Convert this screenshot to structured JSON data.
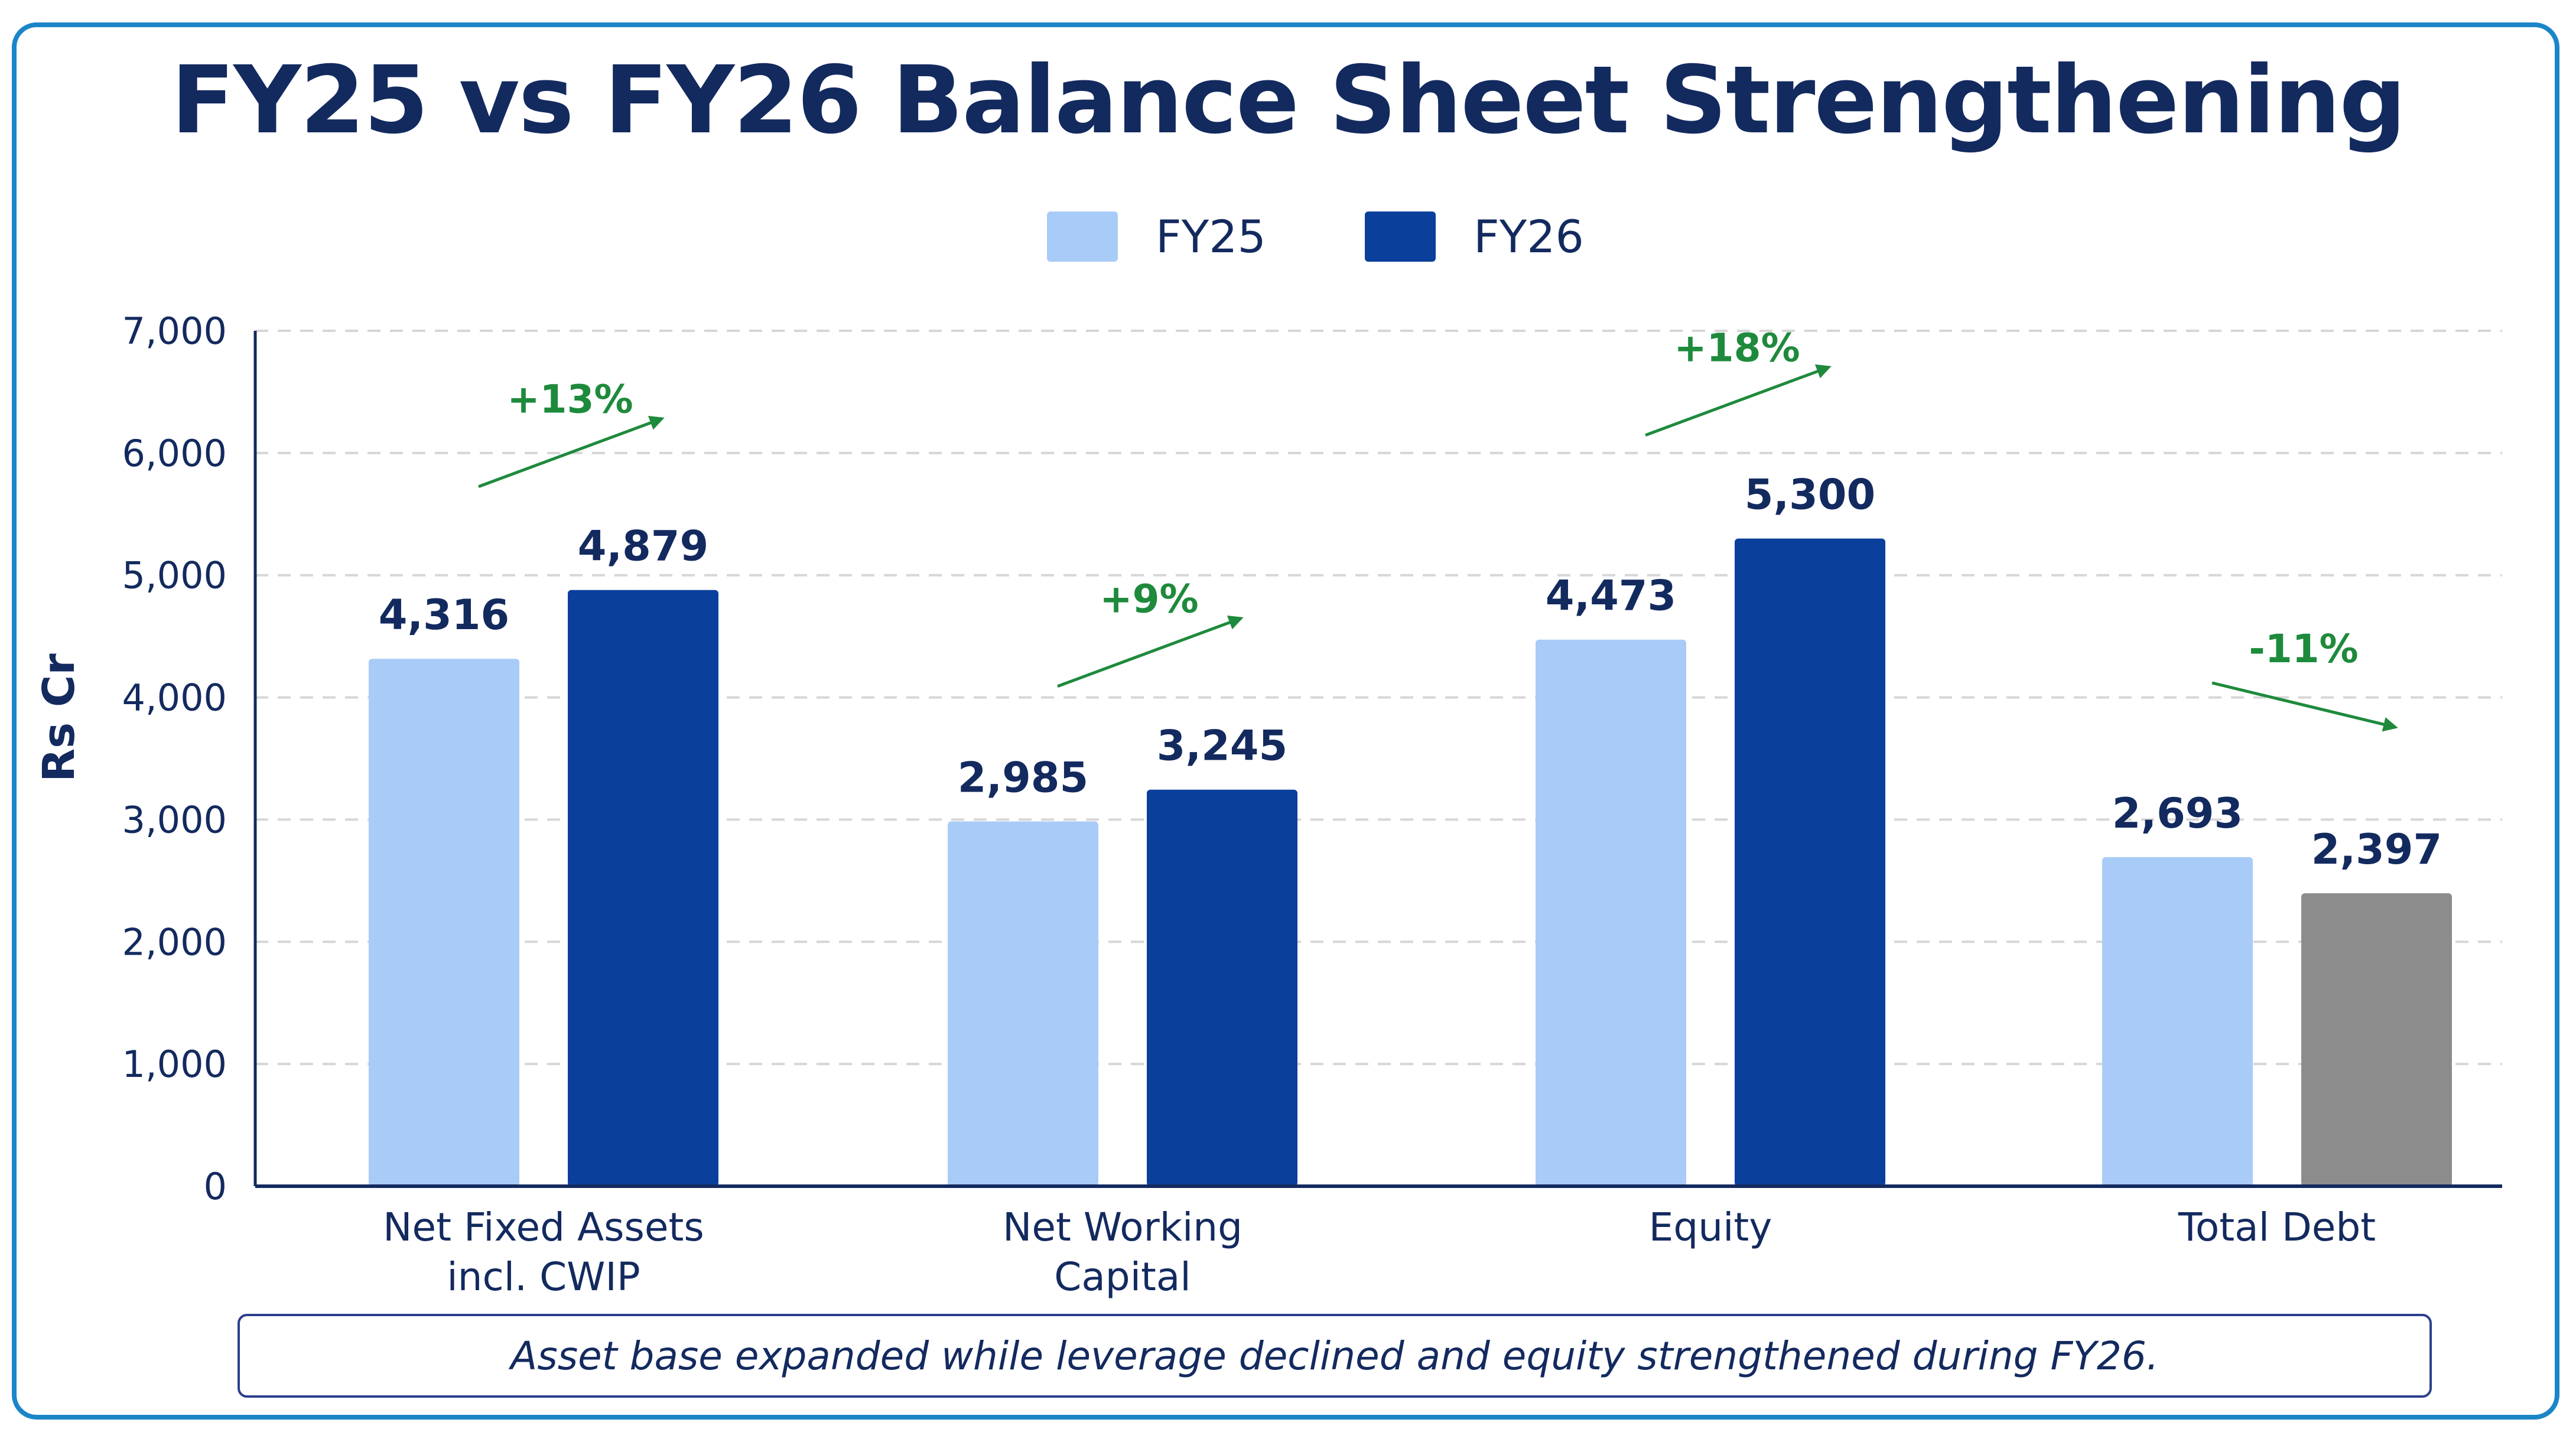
{
  "title": "FY25 vs FY26 Balance Sheet Strengthening",
  "legend": [
    {
      "label": "FY25",
      "color": "#a9cbf7"
    },
    {
      "label": "FY26",
      "color": "#0b3f9c"
    }
  ],
  "note": "Asset base expanded while leverage declined and equity strengthened during FY26.",
  "chart_data": {
    "type": "bar",
    "title": "FY25 vs FY26 Balance Sheet Strengthening",
    "ylabel": "Rs Cr",
    "xlabel": "",
    "ylim": [
      0,
      7000
    ],
    "yticks": [
      0,
      1000,
      2000,
      3000,
      4000,
      5000,
      6000,
      7000
    ],
    "ytick_labels": [
      "0",
      "1,000",
      "2,000",
      "3,000",
      "4,000",
      "5,000",
      "6,000",
      "7,000"
    ],
    "grid": true,
    "legend_position": "top-center",
    "categories": [
      [
        "Net Fixed Assets",
        "incl. CWIP"
      ],
      [
        "Net Working",
        "Capital"
      ],
      [
        "Equity"
      ],
      [
        "Total Debt"
      ]
    ],
    "series": [
      {
        "name": "FY25",
        "color": "#a9cbf7",
        "values": [
          4316,
          2985,
          4473,
          2693
        ],
        "labels": [
          "4,316",
          "2,985",
          "4,473",
          "2,693"
        ]
      },
      {
        "name": "FY26",
        "color": "#0b3f9c",
        "values": [
          4879,
          3245,
          5300,
          2397
        ],
        "labels": [
          "4,879",
          "3,245",
          "5,300",
          "2,397"
        ],
        "overrides": {
          "3": "#8c8c8c"
        }
      }
    ],
    "annotations": [
      {
        "category": 0,
        "text": "+13%",
        "direction": "up",
        "color": "#1e8a3c"
      },
      {
        "category": 1,
        "text": "+9%",
        "direction": "up",
        "color": "#1e8a3c"
      },
      {
        "category": 2,
        "text": "+18%",
        "direction": "up",
        "color": "#1e8a3c"
      },
      {
        "category": 3,
        "text": "-11%",
        "direction": "down",
        "color": "#1e8a3c"
      }
    ]
  }
}
